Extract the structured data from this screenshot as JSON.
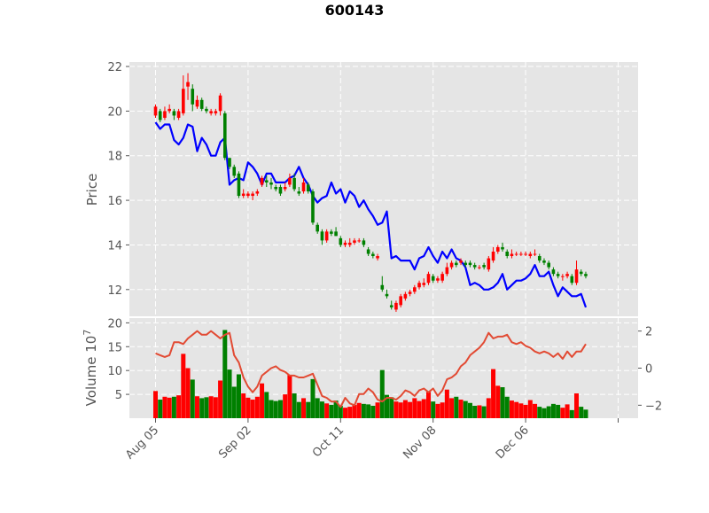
{
  "chart_data": {
    "type": "candlestick",
    "title": "600143",
    "xlabel": "",
    "dates_shown": [
      "Aug 05",
      "Sep 02",
      "Oct 11",
      "Nov 08",
      "Dec 06"
    ],
    "price_panel": {
      "ylabel": "Price",
      "ylim": [
        10.8,
        22.2
      ],
      "yticks": [
        "12",
        "14",
        "16",
        "18",
        "20",
        "22"
      ],
      "ytick_values": [
        12,
        14,
        16,
        18,
        20,
        22
      ],
      "grid": true,
      "up_color": "#ff0000",
      "down_color": "#008000",
      "line_color": "#0000ff"
    },
    "volume_panel": {
      "ylabel": "Volume  10",
      "ylabel_exponent": "7",
      "ylim": [
        0,
        21
      ],
      "yticks": [
        "5",
        "10",
        "15",
        "20"
      ],
      "ytick_values": [
        5,
        10,
        15,
        20
      ],
      "secondary_ylim": [
        -2.7,
        2.7
      ],
      "secondary_yticks": [
        "−2",
        "0",
        "2"
      ],
      "secondary_ytick_values": [
        -2,
        0,
        2
      ],
      "line_color": "#e24a33"
    },
    "colors": {
      "panel_bg": "#e5e5e5",
      "grid": "#ffffff",
      "tick_text": "#555555"
    },
    "candles": [
      {
        "o": 19.8,
        "h": 20.3,
        "l": 19.7,
        "c": 20.2,
        "v": 5.7,
        "t": 19.5,
        "ind": 0.8
      },
      {
        "o": 20.0,
        "h": 20.1,
        "l": 19.5,
        "c": 19.6,
        "v": 3.9,
        "t": 19.2,
        "ind": 0.7
      },
      {
        "o": 19.7,
        "h": 20.2,
        "l": 19.6,
        "c": 20.0,
        "v": 4.5,
        "t": 19.4,
        "ind": 0.6
      },
      {
        "o": 20.0,
        "h": 20.3,
        "l": 19.9,
        "c": 20.1,
        "v": 4.3,
        "t": 19.4,
        "ind": 0.7
      },
      {
        "o": 20.0,
        "h": 20.1,
        "l": 19.6,
        "c": 19.8,
        "v": 4.5,
        "t": 18.7,
        "ind": 1.4
      },
      {
        "o": 19.7,
        "h": 20.1,
        "l": 19.6,
        "c": 20.0,
        "v": 4.8,
        "t": 18.5,
        "ind": 1.4
      },
      {
        "o": 19.9,
        "h": 21.6,
        "l": 19.8,
        "c": 21.0,
        "v": 13.5,
        "t": 18.8,
        "ind": 1.3
      },
      {
        "o": 21.1,
        "h": 21.7,
        "l": 20.5,
        "c": 21.3,
        "v": 10.5,
        "t": 19.4,
        "ind": 1.6
      },
      {
        "o": 21.0,
        "h": 21.2,
        "l": 20.0,
        "c": 20.3,
        "v": 8.1,
        "t": 19.3,
        "ind": 1.8
      },
      {
        "o": 20.2,
        "h": 20.7,
        "l": 20.1,
        "c": 20.5,
        "v": 4.6,
        "t": 18.2,
        "ind": 2.0
      },
      {
        "o": 20.5,
        "h": 20.6,
        "l": 20.0,
        "c": 20.1,
        "v": 4.2,
        "t": 18.8,
        "ind": 1.8
      },
      {
        "o": 20.1,
        "h": 20.2,
        "l": 19.9,
        "c": 20.0,
        "v": 4.4,
        "t": 18.5,
        "ind": 1.8
      },
      {
        "o": 19.9,
        "h": 20.1,
        "l": 19.8,
        "c": 20.0,
        "v": 4.6,
        "t": 18.0,
        "ind": 2.0
      },
      {
        "o": 19.9,
        "h": 20.1,
        "l": 19.8,
        "c": 20.0,
        "v": 4.4,
        "t": 18.0,
        "ind": 1.8
      },
      {
        "o": 20.0,
        "h": 20.8,
        "l": 19.8,
        "c": 20.7,
        "v": 7.9,
        "t": 18.6,
        "ind": 1.6
      },
      {
        "o": 19.9,
        "h": 20.0,
        "l": 17.8,
        "c": 17.9,
        "v": 18.5,
        "t": 18.8,
        "ind": 1.8
      },
      {
        "o": 17.9,
        "h": 17.9,
        "l": 17.4,
        "c": 17.5,
        "v": 10.2,
        "t": 16.7,
        "ind": 1.9
      },
      {
        "o": 17.5,
        "h": 17.6,
        "l": 17.0,
        "c": 17.1,
        "v": 6.6,
        "t": 16.9,
        "ind": 0.7
      },
      {
        "o": 17.2,
        "h": 17.3,
        "l": 16.1,
        "c": 16.2,
        "v": 9.2,
        "t": 17.0,
        "ind": 0.3
      },
      {
        "o": 16.2,
        "h": 16.5,
        "l": 16.1,
        "c": 16.3,
        "v": 5.2,
        "t": 16.9,
        "ind": -0.5
      },
      {
        "o": 16.2,
        "h": 16.4,
        "l": 16.1,
        "c": 16.3,
        "v": 4.3,
        "t": 17.7,
        "ind": -1.0
      },
      {
        "o": 16.2,
        "h": 16.4,
        "l": 16.0,
        "c": 16.3,
        "v": 3.9,
        "t": 17.5,
        "ind": -1.3
      },
      {
        "o": 16.3,
        "h": 16.5,
        "l": 16.2,
        "c": 16.4,
        "v": 4.5,
        "t": 17.2,
        "ind": -1.0
      },
      {
        "o": 16.7,
        "h": 17.1,
        "l": 16.6,
        "c": 17.0,
        "v": 7.3,
        "t": 16.7,
        "ind": -0.4
      },
      {
        "o": 16.9,
        "h": 17.1,
        "l": 16.6,
        "c": 16.8,
        "v": 5.5,
        "t": 17.2,
        "ind": -0.2
      },
      {
        "o": 16.8,
        "h": 17.0,
        "l": 16.5,
        "c": 16.7,
        "v": 3.8,
        "t": 17.2,
        "ind": 0.0
      },
      {
        "o": 16.6,
        "h": 16.7,
        "l": 16.4,
        "c": 16.5,
        "v": 3.6,
        "t": 16.8,
        "ind": 0.1
      },
      {
        "o": 16.6,
        "h": 16.7,
        "l": 16.2,
        "c": 16.3,
        "v": 3.8,
        "t": 16.8,
        "ind": -0.1
      },
      {
        "o": 16.5,
        "h": 16.8,
        "l": 16.4,
        "c": 16.6,
        "v": 5.0,
        "t": 16.8,
        "ind": -0.2
      },
      {
        "o": 16.7,
        "h": 17.2,
        "l": 16.6,
        "c": 17.0,
        "v": 9.1,
        "t": 17.0,
        "ind": -0.4
      },
      {
        "o": 17.0,
        "h": 17.2,
        "l": 16.4,
        "c": 16.5,
        "v": 5.2,
        "t": 17.1,
        "ind": -0.4
      },
      {
        "o": 16.4,
        "h": 16.6,
        "l": 16.2,
        "c": 16.3,
        "v": 3.4,
        "t": 17.5,
        "ind": -0.5
      },
      {
        "o": 16.4,
        "h": 17.0,
        "l": 16.3,
        "c": 16.8,
        "v": 4.2,
        "t": 17.0,
        "ind": -0.5
      },
      {
        "o": 16.7,
        "h": 16.8,
        "l": 16.3,
        "c": 16.4,
        "v": 3.4,
        "t": 16.7,
        "ind": -0.4
      },
      {
        "o": 16.4,
        "h": 16.5,
        "l": 14.9,
        "c": 15.0,
        "v": 8.2,
        "t": 16.2,
        "ind": -0.3
      },
      {
        "o": 14.9,
        "h": 15.0,
        "l": 14.5,
        "c": 14.6,
        "v": 4.2,
        "t": 15.9,
        "ind": -0.9
      },
      {
        "o": 14.6,
        "h": 14.7,
        "l": 14.0,
        "c": 14.2,
        "v": 3.5,
        "t": 16.1,
        "ind": -1.5
      },
      {
        "o": 14.2,
        "h": 14.7,
        "l": 14.1,
        "c": 14.6,
        "v": 3.1,
        "t": 16.2,
        "ind": -1.6
      },
      {
        "o": 14.6,
        "h": 14.7,
        "l": 14.4,
        "c": 14.5,
        "v": 2.8,
        "t": 16.8,
        "ind": -1.8
      },
      {
        "o": 14.6,
        "h": 14.8,
        "l": 14.4,
        "c": 14.4,
        "v": 3.7,
        "t": 16.3,
        "ind": -1.8
      },
      {
        "o": 14.3,
        "h": 14.4,
        "l": 13.9,
        "c": 14.0,
        "v": 2.6,
        "t": 16.5,
        "ind": -2.1
      },
      {
        "o": 14.0,
        "h": 14.2,
        "l": 13.9,
        "c": 14.1,
        "v": 2.2,
        "t": 15.9,
        "ind": -1.6
      },
      {
        "o": 14.0,
        "h": 14.3,
        "l": 13.9,
        "c": 14.1,
        "v": 2.4,
        "t": 16.4,
        "ind": -1.9
      },
      {
        "o": 14.1,
        "h": 14.3,
        "l": 14.0,
        "c": 14.2,
        "v": 2.8,
        "t": 16.2,
        "ind": -2.0
      },
      {
        "o": 14.2,
        "h": 14.3,
        "l": 14.1,
        "c": 14.2,
        "v": 3.2,
        "t": 15.7,
        "ind": -1.4
      },
      {
        "o": 14.2,
        "h": 14.3,
        "l": 13.9,
        "c": 14.0,
        "v": 3.0,
        "t": 16.0,
        "ind": -1.4
      },
      {
        "o": 13.8,
        "h": 13.9,
        "l": 13.5,
        "c": 13.6,
        "v": 2.9,
        "t": 15.6,
        "ind": -1.1
      },
      {
        "o": 13.6,
        "h": 13.7,
        "l": 13.4,
        "c": 13.5,
        "v": 2.6,
        "t": 15.3,
        "ind": -1.3
      },
      {
        "o": 13.4,
        "h": 13.6,
        "l": 13.3,
        "c": 13.5,
        "v": 3.3,
        "t": 14.9,
        "ind": -1.7
      },
      {
        "o": 12.2,
        "h": 12.6,
        "l": 11.9,
        "c": 12.0,
        "v": 10.1,
        "t": 15.0,
        "ind": -1.8
      },
      {
        "o": 11.8,
        "h": 12.0,
        "l": 11.6,
        "c": 11.7,
        "v": 4.9,
        "t": 15.5,
        "ind": -1.6
      },
      {
        "o": 11.3,
        "h": 11.5,
        "l": 11.1,
        "c": 11.2,
        "v": 4.4,
        "t": 13.4,
        "ind": -1.6
      },
      {
        "o": 11.1,
        "h": 11.5,
        "l": 11.0,
        "c": 11.4,
        "v": 3.5,
        "t": 13.5,
        "ind": -1.7
      },
      {
        "o": 11.3,
        "h": 11.8,
        "l": 11.2,
        "c": 11.7,
        "v": 3.3,
        "t": 13.3,
        "ind": -1.5
      },
      {
        "o": 11.6,
        "h": 11.9,
        "l": 11.5,
        "c": 11.8,
        "v": 3.8,
        "t": 13.3,
        "ind": -1.2
      },
      {
        "o": 11.8,
        "h": 12.0,
        "l": 11.7,
        "c": 11.9,
        "v": 3.4,
        "t": 13.3,
        "ind": -1.3
      },
      {
        "o": 11.9,
        "h": 12.2,
        "l": 11.8,
        "c": 12.1,
        "v": 4.2,
        "t": 12.9,
        "ind": -1.5
      },
      {
        "o": 12.1,
        "h": 12.4,
        "l": 12.0,
        "c": 12.3,
        "v": 3.6,
        "t": 13.4,
        "ind": -1.2
      },
      {
        "o": 12.2,
        "h": 12.5,
        "l": 12.1,
        "c": 12.3,
        "v": 4.0,
        "t": 13.5,
        "ind": -1.1
      },
      {
        "o": 12.3,
        "h": 12.8,
        "l": 12.2,
        "c": 12.7,
        "v": 5.5,
        "t": 13.9,
        "ind": -1.3
      },
      {
        "o": 12.6,
        "h": 12.7,
        "l": 12.3,
        "c": 12.4,
        "v": 3.5,
        "t": 13.5,
        "ind": -1.1
      },
      {
        "o": 12.4,
        "h": 12.6,
        "l": 12.3,
        "c": 12.5,
        "v": 3.0,
        "t": 13.2,
        "ind": -1.5
      },
      {
        "o": 12.4,
        "h": 12.8,
        "l": 12.3,
        "c": 12.7,
        "v": 3.3,
        "t": 13.7,
        "ind": -1.2
      },
      {
        "o": 12.7,
        "h": 13.2,
        "l": 12.6,
        "c": 13.0,
        "v": 6.0,
        "t": 13.4,
        "ind": -0.6
      },
      {
        "o": 13.0,
        "h": 13.3,
        "l": 12.9,
        "c": 13.2,
        "v": 4.2,
        "t": 13.8,
        "ind": -0.5
      },
      {
        "o": 13.2,
        "h": 13.3,
        "l": 13.0,
        "c": 13.1,
        "v": 4.5,
        "t": 13.4,
        "ind": -0.3
      },
      {
        "o": 13.2,
        "h": 13.4,
        "l": 13.1,
        "c": 13.3,
        "v": 3.9,
        "t": 13.3,
        "ind": 0.1
      },
      {
        "o": 13.2,
        "h": 13.3,
        "l": 13.0,
        "c": 13.1,
        "v": 3.6,
        "t": 13.0,
        "ind": 0.3
      },
      {
        "o": 13.2,
        "h": 13.3,
        "l": 13.0,
        "c": 13.1,
        "v": 3.2,
        "t": 12.2,
        "ind": 0.7
      },
      {
        "o": 13.1,
        "h": 13.2,
        "l": 12.9,
        "c": 13.0,
        "v": 2.6,
        "t": 12.3,
        "ind": 0.9
      },
      {
        "o": 13.0,
        "h": 13.1,
        "l": 12.9,
        "c": 13.0,
        "v": 2.7,
        "t": 12.2,
        "ind": 1.1
      },
      {
        "o": 13.1,
        "h": 13.2,
        "l": 12.9,
        "c": 13.0,
        "v": 2.5,
        "t": 12.0,
        "ind": 1.4
      },
      {
        "o": 12.9,
        "h": 13.5,
        "l": 12.8,
        "c": 13.4,
        "v": 4.2,
        "t": 12.0,
        "ind": 1.9
      },
      {
        "o": 13.3,
        "h": 13.9,
        "l": 13.2,
        "c": 13.7,
        "v": 10.3,
        "t": 12.1,
        "ind": 1.6
      },
      {
        "o": 13.7,
        "h": 14.0,
        "l": 13.6,
        "c": 13.9,
        "v": 6.8,
        "t": 12.3,
        "ind": 1.7
      },
      {
        "o": 13.9,
        "h": 14.1,
        "l": 13.7,
        "c": 13.8,
        "v": 6.5,
        "t": 12.7,
        "ind": 1.7
      },
      {
        "o": 13.7,
        "h": 13.8,
        "l": 13.4,
        "c": 13.5,
        "v": 4.5,
        "t": 12.0,
        "ind": 1.8
      },
      {
        "o": 13.5,
        "h": 13.8,
        "l": 13.4,
        "c": 13.6,
        "v": 3.7,
        "t": 12.2,
        "ind": 1.4
      },
      {
        "o": 13.6,
        "h": 13.7,
        "l": 13.5,
        "c": 13.6,
        "v": 3.4,
        "t": 12.4,
        "ind": 1.3
      },
      {
        "o": 13.6,
        "h": 13.7,
        "l": 13.5,
        "c": 13.6,
        "v": 3.1,
        "t": 12.4,
        "ind": 1.4
      },
      {
        "o": 13.6,
        "h": 13.7,
        "l": 13.5,
        "c": 13.6,
        "v": 2.8,
        "t": 12.5,
        "ind": 1.2
      },
      {
        "o": 13.5,
        "h": 13.7,
        "l": 13.4,
        "c": 13.6,
        "v": 3.8,
        "t": 12.7,
        "ind": 1.1
      },
      {
        "o": 13.6,
        "h": 13.8,
        "l": 13.5,
        "c": 13.6,
        "v": 3.0,
        "t": 13.1,
        "ind": 0.9
      },
      {
        "o": 13.5,
        "h": 13.6,
        "l": 13.2,
        "c": 13.3,
        "v": 2.4,
        "t": 12.6,
        "ind": 0.8
      },
      {
        "o": 13.3,
        "h": 13.4,
        "l": 13.1,
        "c": 13.2,
        "v": 2.1,
        "t": 12.6,
        "ind": 0.9
      },
      {
        "o": 13.2,
        "h": 13.3,
        "l": 12.9,
        "c": 13.0,
        "v": 2.5,
        "t": 12.8,
        "ind": 0.8
      },
      {
        "o": 12.9,
        "h": 13.0,
        "l": 12.6,
        "c": 12.7,
        "v": 3.0,
        "t": 12.2,
        "ind": 0.6
      },
      {
        "o": 12.7,
        "h": 12.8,
        "l": 12.5,
        "c": 12.6,
        "v": 2.8,
        "t": 11.7,
        "ind": 0.8
      },
      {
        "o": 12.6,
        "h": 12.7,
        "l": 12.4,
        "c": 12.6,
        "v": 2.2,
        "t": 12.1,
        "ind": 0.5
      },
      {
        "o": 12.6,
        "h": 12.8,
        "l": 12.5,
        "c": 12.7,
        "v": 2.9,
        "t": 11.9,
        "ind": 0.9
      },
      {
        "o": 12.6,
        "h": 12.7,
        "l": 12.2,
        "c": 12.3,
        "v": 1.7,
        "t": 11.7,
        "ind": 0.6
      },
      {
        "o": 12.3,
        "h": 13.3,
        "l": 12.2,
        "c": 12.9,
        "v": 5.2,
        "t": 11.7,
        "ind": 0.9
      },
      {
        "o": 12.8,
        "h": 12.9,
        "l": 12.6,
        "c": 12.7,
        "v": 2.4,
        "t": 11.8,
        "ind": 0.9
      },
      {
        "o": 12.7,
        "h": 12.8,
        "l": 12.5,
        "c": 12.6,
        "v": 1.8,
        "t": 11.2,
        "ind": 1.3
      }
    ]
  }
}
